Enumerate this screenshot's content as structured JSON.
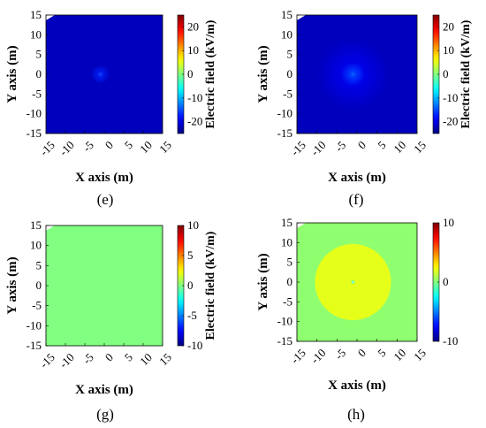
{
  "chart_data": [
    {
      "type": "heatmap",
      "panel_label": "(e)",
      "xlabel": "X  axis  (m)",
      "ylabel": "Y  axis  (m)",
      "colorbar_label": "Electric field (kV/m)",
      "xlim": [
        -15,
        15
      ],
      "ylim": [
        -15,
        15
      ],
      "xticks": [
        -15,
        -10,
        -5,
        0,
        5,
        10,
        15
      ],
      "yticks": [
        15,
        10,
        5,
        0,
        -5,
        -10,
        -15
      ],
      "clim": [
        -25,
        25
      ],
      "cbticks": [
        20,
        10,
        0,
        -10,
        -20
      ],
      "background_value": -22,
      "features": [
        {
          "shape": "point",
          "cx": -1,
          "cy": 0,
          "r": 0.3,
          "value": 0
        },
        {
          "shape": "glow",
          "cx": -1,
          "cy": 0,
          "r": 2.5,
          "value": -17
        }
      ],
      "grid": false
    },
    {
      "type": "heatmap",
      "panel_label": "(f)",
      "xlabel": "X  axis  (m)",
      "ylabel": "Y  axis  (m)",
      "colorbar_label": "Electric field (kV/m)",
      "xlim": [
        -15,
        15
      ],
      "ylim": [
        -15,
        15
      ],
      "xticks": [
        -15,
        -10,
        -5,
        0,
        5,
        10,
        15
      ],
      "yticks": [
        15,
        10,
        5,
        0,
        -5,
        -10,
        -15
      ],
      "clim": [
        -25,
        25
      ],
      "cbticks": [
        20,
        10,
        0,
        -10,
        -20
      ],
      "background_value": -22,
      "features": [
        {
          "shape": "glow",
          "cx": -1,
          "cy": 0,
          "r": 9,
          "value": -19
        },
        {
          "shape": "point",
          "cx": -1,
          "cy": 0,
          "r": 0.5,
          "value": 0
        },
        {
          "shape": "glow",
          "cx": -1,
          "cy": 0,
          "r": 3,
          "value": -15
        }
      ],
      "grid": false
    },
    {
      "type": "heatmap",
      "panel_label": "(g)",
      "xlabel": "X  axis  (m)",
      "ylabel": "Y  axis  (m)",
      "colorbar_label": "Electric field (kV/m)",
      "xlim": [
        -15,
        15
      ],
      "ylim": [
        -15,
        15
      ],
      "xticks": [
        -15,
        -10,
        -5,
        0,
        5,
        10,
        15
      ],
      "yticks": [
        15,
        10,
        5,
        0,
        -5,
        -10,
        -15
      ],
      "clim": [
        -10,
        10
      ],
      "cbticks": [
        10,
        5,
        0,
        -5,
        -10
      ],
      "background_value": 0,
      "features": [],
      "grid": false
    },
    {
      "type": "heatmap",
      "panel_label": "(h)",
      "xlabel": "X  axis  (m)",
      "ylabel": "Y  axis  (m)",
      "colorbar_label": "",
      "xlim": [
        -15,
        15
      ],
      "ylim": [
        -15,
        15
      ],
      "xticks": [
        -15,
        -10,
        -5,
        0,
        5,
        10,
        15
      ],
      "yticks": [
        15,
        10,
        5,
        0,
        -5,
        -10,
        -15
      ],
      "clim": [
        -10,
        10
      ],
      "cbticks": [
        10,
        0,
        -10
      ],
      "background_value": 0.3,
      "features": [
        {
          "shape": "disk",
          "cx": -1,
          "cy": 0,
          "r": 9.5,
          "value": 2
        },
        {
          "shape": "point",
          "cx": -1,
          "cy": 0,
          "r": 0.35,
          "value": -1
        }
      ],
      "grid": false
    }
  ]
}
